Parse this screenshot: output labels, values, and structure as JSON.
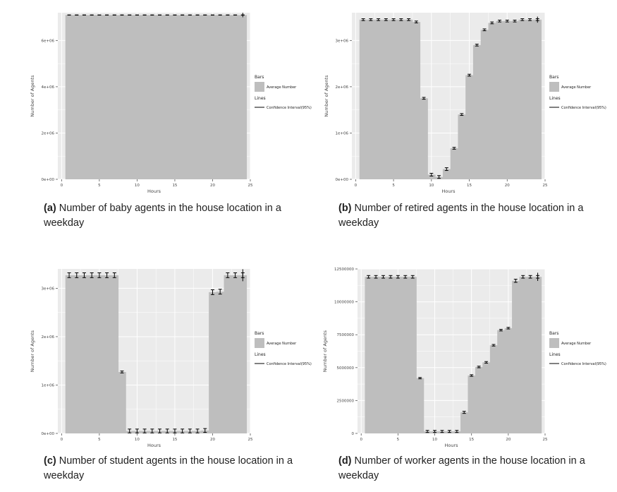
{
  "colors": {
    "panel_bg": "#ebebeb",
    "bar": "#bebebe",
    "grid": "#ffffff",
    "line": "#000000"
  },
  "legend": {
    "bars_title": "Bars",
    "bars_item": "Average Number",
    "lines_title": "Lines",
    "lines_item": "Confidence Interval(95%)"
  },
  "captions": [
    {
      "tag": "(a)",
      "text": "Number of baby agents in the house location in a weekday"
    },
    {
      "tag": "(b)",
      "text": "Number of retired agents in the house location in a weekday"
    },
    {
      "tag": "(c)",
      "text": "Number of student agents in the house location in a weekday"
    },
    {
      "tag": "(d)",
      "text": "Number of worker agents in the house location in a weekday"
    }
  ],
  "chart_data": [
    {
      "type": "bar",
      "xlabel": "Hours",
      "ylabel": "Number of Agents",
      "xlim": [
        -0.5,
        25
      ],
      "ylim": [
        0,
        7200000
      ],
      "xticks": [
        "0",
        "5",
        "10",
        "15",
        "20",
        "25"
      ],
      "yticks": [
        {
          "v": 0,
          "label": "0e+00"
        },
        {
          "v": 2000000,
          "label": "2e+06"
        },
        {
          "v": 4000000,
          "label": "4e+06"
        },
        {
          "v": 6000000,
          "label": "6e+06"
        }
      ],
      "hours": [
        0,
        1,
        2,
        3,
        4,
        5,
        6,
        7,
        8,
        9,
        10,
        11,
        12,
        13,
        14,
        15,
        16,
        17,
        18,
        19,
        20,
        21,
        22,
        23,
        24
      ],
      "values": [
        7100000,
        7100000,
        7100000,
        7100000,
        7100000,
        7100000,
        7100000,
        7100000,
        7100000,
        7100000,
        7100000,
        7100000,
        7100000,
        7100000,
        7100000,
        7100000,
        7100000,
        7100000,
        7100000,
        7100000,
        7100000,
        7100000,
        7100000,
        7100000,
        7100000
      ],
      "ci_half": [
        5000,
        5000,
        5000,
        5000,
        5000,
        5000,
        5000,
        5000,
        5000,
        5000,
        5000,
        5000,
        5000,
        5000,
        5000,
        5000,
        5000,
        5000,
        5000,
        5000,
        5000,
        5000,
        5000,
        5000,
        5000
      ]
    },
    {
      "type": "bar",
      "xlabel": "Hours",
      "ylabel": "Number of Agents",
      "xlim": [
        -0.5,
        25
      ],
      "ylim": [
        0,
        3600000
      ],
      "xticks": [
        "0",
        "5",
        "10",
        "15",
        "20",
        "25"
      ],
      "yticks": [
        {
          "v": 0,
          "label": "0e+00"
        },
        {
          "v": 1000000,
          "label": "1e+06"
        },
        {
          "v": 2000000,
          "label": "2e+06"
        },
        {
          "v": 3000000,
          "label": "3e+06"
        }
      ],
      "hours": [
        0,
        1,
        2,
        3,
        4,
        5,
        6,
        7,
        8,
        9,
        10,
        11,
        12,
        13,
        14,
        15,
        16,
        17,
        18,
        19,
        20,
        21,
        22,
        23,
        24
      ],
      "values": [
        3450000,
        3450000,
        3450000,
        3450000,
        3450000,
        3450000,
        3450000,
        3400000,
        1750000,
        100000,
        50000,
        220000,
        670000,
        1400000,
        2250000,
        2900000,
        3230000,
        3380000,
        3420000,
        3420000,
        3420000,
        3450000,
        3450000,
        3450000,
        3450000
      ],
      "ci_half": [
        20000,
        20000,
        20000,
        20000,
        20000,
        20000,
        20000,
        20000,
        20000,
        30000,
        30000,
        30000,
        20000,
        20000,
        20000,
        20000,
        20000,
        20000,
        20000,
        20000,
        20000,
        20000,
        20000,
        20000,
        20000
      ]
    },
    {
      "type": "bar",
      "xlabel": "Hours",
      "ylabel": "Number of Agents",
      "xlim": [
        -0.5,
        25
      ],
      "ylim": [
        0,
        3400000
      ],
      "xticks": [
        "0",
        "5",
        "10",
        "15",
        "20",
        "25"
      ],
      "yticks": [
        {
          "v": 0,
          "label": "0e+00"
        },
        {
          "v": 1000000,
          "label": "1e+06"
        },
        {
          "v": 2000000,
          "label": "2e+06"
        },
        {
          "v": 3000000,
          "label": "3e+06"
        }
      ],
      "hours": [
        0,
        1,
        2,
        3,
        4,
        5,
        6,
        7,
        8,
        9,
        10,
        11,
        12,
        13,
        14,
        15,
        16,
        17,
        18,
        19,
        20,
        21,
        22,
        23,
        24
      ],
      "values": [
        3270000,
        3270000,
        3270000,
        3270000,
        3270000,
        3270000,
        3270000,
        1270000,
        50000,
        50000,
        50000,
        50000,
        50000,
        50000,
        50000,
        50000,
        50000,
        50000,
        60000,
        2920000,
        2930000,
        3270000,
        3270000,
        3270000,
        3270000
      ],
      "ci_half": [
        50000,
        50000,
        50000,
        50000,
        50000,
        50000,
        50000,
        20000,
        40000,
        40000,
        40000,
        40000,
        40000,
        40000,
        40000,
        40000,
        40000,
        40000,
        40000,
        50000,
        50000,
        50000,
        50000,
        50000,
        80000
      ]
    },
    {
      "type": "bar",
      "xlabel": "Hours",
      "ylabel": "Number of Agents",
      "xlim": [
        -0.5,
        25
      ],
      "ylim": [
        0,
        12500000
      ],
      "xticks": [
        "0",
        "5",
        "10",
        "15",
        "20",
        "25"
      ],
      "yticks": [
        {
          "v": 0,
          "label": "0"
        },
        {
          "v": 2500000,
          "label": "2500000"
        },
        {
          "v": 5000000,
          "label": "5000000"
        },
        {
          "v": 7500000,
          "label": "7500000"
        },
        {
          "v": 10000000,
          "label": "10000000"
        },
        {
          "v": 12500000,
          "label": "12500000"
        }
      ],
      "hours": [
        0,
        1,
        2,
        3,
        4,
        5,
        6,
        7,
        8,
        9,
        10,
        11,
        12,
        13,
        14,
        15,
        16,
        17,
        18,
        19,
        20,
        21,
        22,
        23,
        24
      ],
      "values": [
        11900000,
        11900000,
        11900000,
        11900000,
        11900000,
        11900000,
        11900000,
        4200000,
        150000,
        150000,
        150000,
        150000,
        150000,
        1600000,
        4400000,
        5050000,
        5400000,
        6700000,
        7850000,
        8000000,
        11600000,
        11900000,
        11900000,
        11900000,
        11900000
      ],
      "ci_half": [
        100000,
        100000,
        100000,
        100000,
        100000,
        100000,
        100000,
        50000,
        80000,
        80000,
        80000,
        80000,
        80000,
        80000,
        60000,
        60000,
        60000,
        60000,
        60000,
        60000,
        120000,
        100000,
        100000,
        100000,
        150000
      ]
    }
  ]
}
